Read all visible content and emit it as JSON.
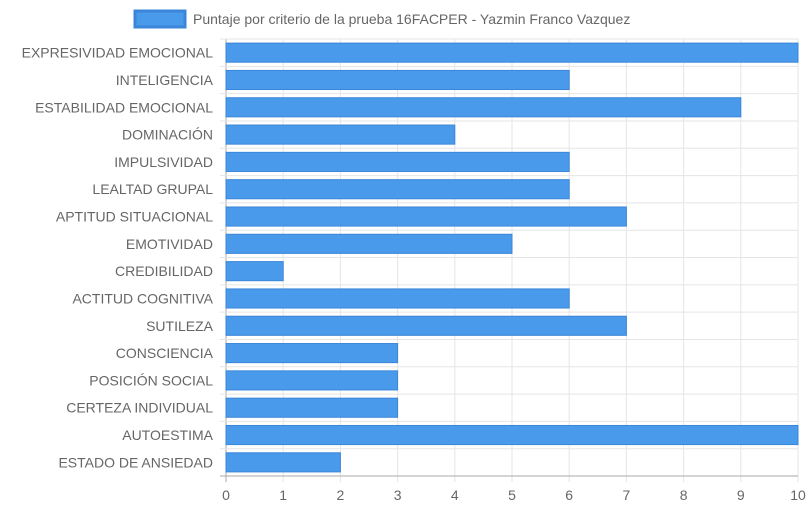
{
  "chart_data": {
    "type": "bar",
    "orientation": "horizontal",
    "legend": {
      "position": "top",
      "label": "Puntaje por criterio de la prueba 16FACPER - Yazmin Franco Vazquez"
    },
    "categories": [
      "EXPRESIVIDAD EMOCIONAL",
      "INTELIGENCIA",
      "ESTABILIDAD EMOCIONAL",
      "DOMINACIÓN",
      "IMPULSIVIDAD",
      "LEALTAD GRUPAL",
      "APTITUD SITUACIONAL",
      "EMOTIVIDAD",
      "CREDIBILIDAD",
      "ACTITUD COGNITIVA",
      "SUTILEZA",
      "CONSCIENCIA",
      "POSICIÓN SOCIAL",
      "CERTEZA INDIVIDUAL",
      "AUTOESTIMA",
      "ESTADO DE ANSIEDAD"
    ],
    "series": [
      {
        "name": "Puntaje por criterio de la prueba 16FACPER - Yazmin Franco Vazquez",
        "values": [
          10,
          6,
          9,
          4,
          6,
          6,
          7,
          5,
          1,
          6,
          7,
          3,
          3,
          3,
          10,
          2
        ]
      }
    ],
    "xlim": [
      0,
      10
    ],
    "xticks": [
      "0",
      "1",
      "2",
      "3",
      "4",
      "5",
      "6",
      "7",
      "8",
      "9",
      "10"
    ],
    "grid": true,
    "colors": {
      "bar_fill": "#4a9aeb",
      "bar_border": "#3b86d8",
      "grid": "#e5e5e5",
      "axis": "#aaaaaa",
      "text": "#666666"
    }
  }
}
